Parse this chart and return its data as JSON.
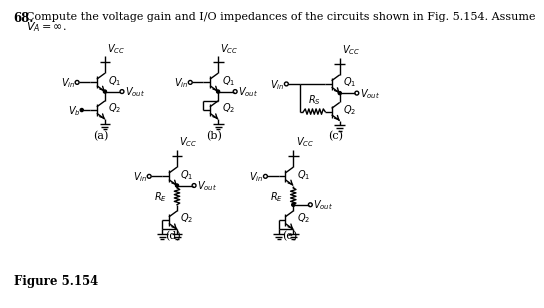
{
  "title_text": "68.  Compute the voltage gain and I/O impedances of the circuits shown in Fig. 5.154. Assume",
  "title_line2": "      $V_A = \\infty$.",
  "figure_label": "Figure 5.154",
  "background_color": "#ffffff",
  "text_color": "#000000",
  "line_color": "#000000"
}
